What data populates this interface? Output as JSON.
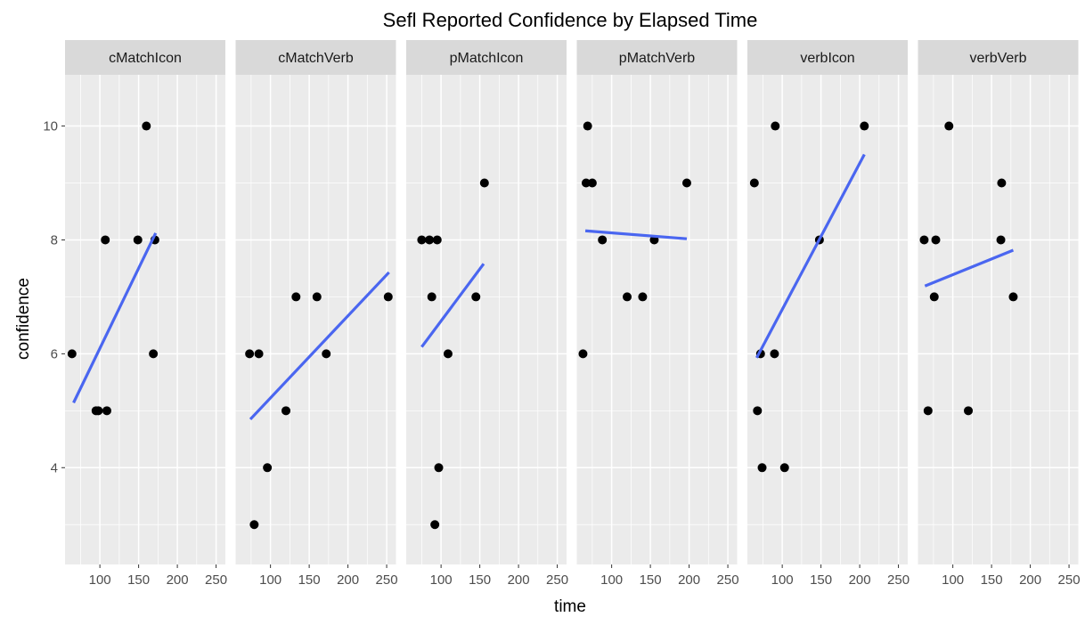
{
  "chart_data": {
    "type": "scatter",
    "title": "Sefl Reported Confidence by Elapsed Time",
    "xlabel": "time",
    "ylabel": "confidence",
    "xlim": [
      55,
      262
    ],
    "ylim": [
      2.3,
      10.9
    ],
    "x_ticks": [
      100,
      150,
      200,
      250
    ],
    "y_ticks": [
      4,
      6,
      8,
      10
    ],
    "grid": true,
    "colors": {
      "panel_background": "#ebebeb",
      "grid": "#ffffff",
      "strip_background": "#d9d9d9",
      "point": "#000000",
      "fit_line": "#4a66f0"
    },
    "facets": [
      {
        "name": "cMatchIcon",
        "x": [
          64,
          95,
          98,
          107,
          109,
          149,
          160,
          169,
          171
        ],
        "y": [
          6,
          5,
          5,
          8,
          5,
          8,
          10,
          6,
          8
        ],
        "fit": {
          "x": [
            66,
            172
          ],
          "y": [
            5.14,
            8.12
          ]
        }
      },
      {
        "name": "cMatchVerb",
        "x": [
          73,
          79,
          85,
          96,
          120,
          133,
          160,
          172,
          252
        ],
        "y": [
          6,
          3,
          6,
          4,
          5,
          7,
          7,
          6,
          7
        ],
        "fit": {
          "x": [
            74,
            253
          ],
          "y": [
            4.85,
            7.43
          ]
        }
      },
      {
        "name": "pMatchIcon",
        "x": [
          75,
          85,
          88,
          92,
          95,
          97,
          109,
          145,
          156
        ],
        "y": [
          8,
          8,
          7,
          3,
          8,
          4,
          6,
          7,
          9
        ],
        "fit": {
          "x": [
            75,
            155
          ],
          "y": [
            6.12,
            7.58
          ]
        }
      },
      {
        "name": "pMatchVerb",
        "x": [
          63,
          67,
          69,
          75,
          88,
          120,
          140,
          155,
          197
        ],
        "y": [
          6,
          9,
          10,
          9,
          8,
          7,
          7,
          8,
          9
        ],
        "fit": {
          "x": [
            66,
            197
          ],
          "y": [
            8.16,
            8.02
          ]
        }
      },
      {
        "name": "verbIcon",
        "x": [
          64,
          68,
          72,
          74,
          90,
          91,
          103,
          148,
          206
        ],
        "y": [
          9,
          5,
          6,
          4,
          6,
          10,
          4,
          8,
          10
        ],
        "fit": {
          "x": [
            67,
            206
          ],
          "y": [
            5.93,
            9.5
          ]
        }
      },
      {
        "name": "verbVerb",
        "x": [
          63,
          68,
          76,
          78,
          95,
          120,
          162,
          163,
          178
        ],
        "y": [
          8,
          5,
          7,
          8,
          10,
          5,
          8,
          9,
          7
        ],
        "fit": {
          "x": [
            64,
            178
          ],
          "y": [
            7.19,
            7.82
          ]
        }
      }
    ]
  }
}
